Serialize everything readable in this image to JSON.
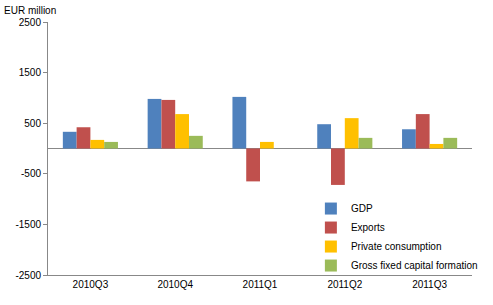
{
  "chart_data": {
    "type": "bar",
    "ylabel": "EUR million",
    "categories": [
      "2010Q3",
      "2010Q4",
      "2011Q1",
      "2011Q2",
      "2011Q3"
    ],
    "series": [
      {
        "name": "GDP",
        "color": "#4F81BD",
        "values": [
          330,
          980,
          1020,
          480,
          380
        ]
      },
      {
        "name": "Exports",
        "color": "#C0504D",
        "values": [
          420,
          960,
          -650,
          -720,
          680
        ]
      },
      {
        "name": "Private consumption",
        "color": "#FFC000",
        "values": [
          170,
          680,
          130,
          600,
          90
        ]
      },
      {
        "name": "Gross fixed capital formation",
        "color": "#9BBB59",
        "values": [
          130,
          250,
          0,
          210,
          210
        ]
      }
    ],
    "ylim": [
      -2500,
      2500
    ],
    "yticks": [
      -2500,
      -1500,
      -500,
      500,
      1500,
      2500
    ],
    "grid": false,
    "legend": "lower right"
  }
}
